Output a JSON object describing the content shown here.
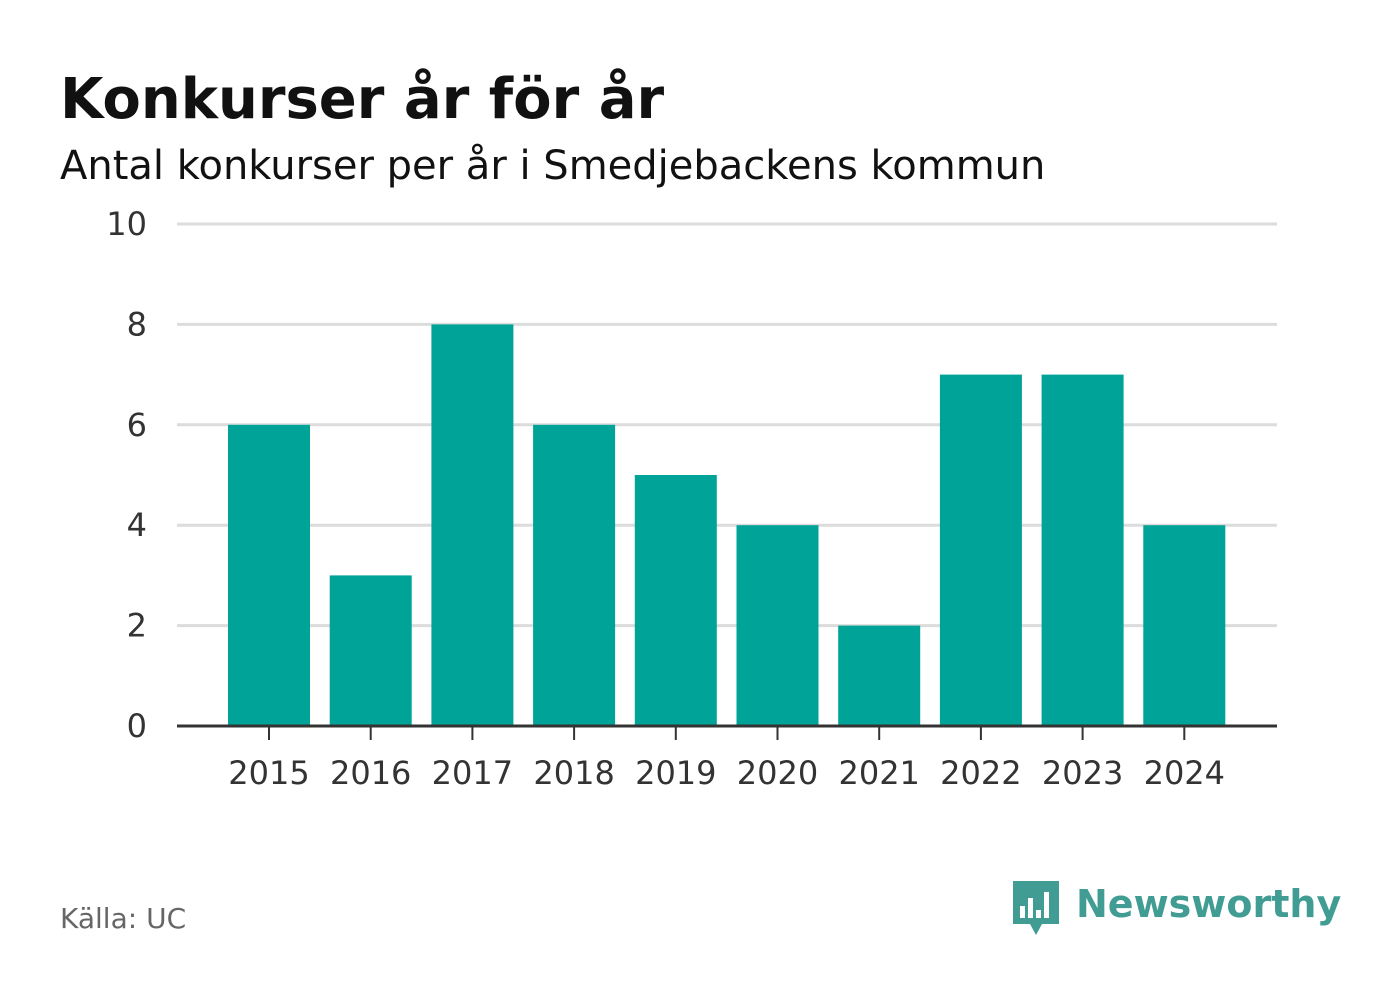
{
  "header": {
    "title": "Konkurser år för år",
    "subtitle": "Antal konkurser per år i Smedjebackens kommun"
  },
  "footer": {
    "source": "Källa: UC",
    "brand_name": "Newsworthy",
    "brand_logo_icon": "bar-chart-speech-bubble-icon"
  },
  "colors": {
    "bar": "#00a398",
    "brand": "#419c94",
    "grid": "#dcdcdc",
    "axis": "#333333"
  },
  "chart_data": {
    "type": "bar",
    "title": "Konkurser år för år",
    "subtitle": "Antal konkurser per år i Smedjebackens kommun",
    "xlabel": "",
    "ylabel": "",
    "categories": [
      "2015",
      "2016",
      "2017",
      "2018",
      "2019",
      "2020",
      "2021",
      "2022",
      "2023",
      "2024"
    ],
    "values": [
      6,
      3,
      8,
      6,
      5,
      4,
      2,
      7,
      7,
      4
    ],
    "ylim": [
      0,
      10
    ],
    "yticks": [
      0,
      2,
      4,
      6,
      8,
      10
    ],
    "grid": true,
    "legend": "none"
  }
}
